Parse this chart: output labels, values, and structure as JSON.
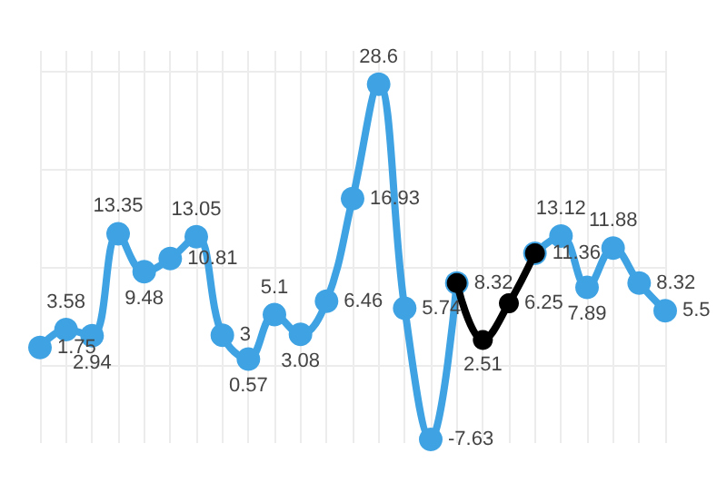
{
  "chart_data": {
    "type": "line",
    "categories": [
      null,
      null,
      null,
      null,
      null,
      null,
      null,
      null,
      null,
      null,
      null,
      null,
      null,
      null,
      null,
      null,
      null,
      null,
      null,
      null,
      null,
      null,
      null,
      null,
      null
    ],
    "series": [
      {
        "color": "#3fa3e3",
        "values": [
          1.75,
          3.58,
          2.94,
          13.35,
          9.48,
          10.81,
          13.05,
          3,
          0.57,
          5.1,
          3.08,
          6.46,
          16.93,
          28.6,
          5.74,
          -7.63,
          8.32,
          null,
          null,
          11.36,
          13.12,
          7.89,
          11.88,
          8.32,
          5.5
        ],
        "value_labels": [
          "1.75",
          "3.58",
          "2.94",
          "13.35",
          "9.48",
          "10.81",
          "13.05",
          "3",
          "0.57",
          "5.1",
          "3.08",
          "6.46",
          "16.93",
          "28.6",
          "5.74",
          "-7.63",
          "8.32",
          null,
          null,
          "11.36",
          "13.12",
          "7.89",
          "11.88",
          "8.32",
          "5.5"
        ]
      },
      {
        "color": "#000000",
        "values": [
          null,
          null,
          null,
          null,
          null,
          null,
          null,
          null,
          null,
          null,
          null,
          null,
          null,
          null,
          null,
          null,
          8.32,
          2.51,
          6.25,
          11.36,
          null,
          null,
          null,
          null,
          null
        ],
        "value_labels": [
          null,
          null,
          null,
          null,
          null,
          null,
          null,
          null,
          null,
          null,
          null,
          null,
          null,
          null,
          null,
          null,
          null,
          "2.51",
          "6.25",
          null,
          null,
          null,
          null,
          null,
          null
        ]
      }
    ],
    "ylim": [
      -8,
      32
    ],
    "yticks": [
      {
        "value": 0,
        "label": null
      },
      {
        "value": 10,
        "label": null
      },
      {
        "value": 20,
        "label": null
      },
      {
        "value": 30,
        "label": null
      }
    ],
    "grid": true,
    "marker": "circle",
    "line_style": "solid"
  }
}
